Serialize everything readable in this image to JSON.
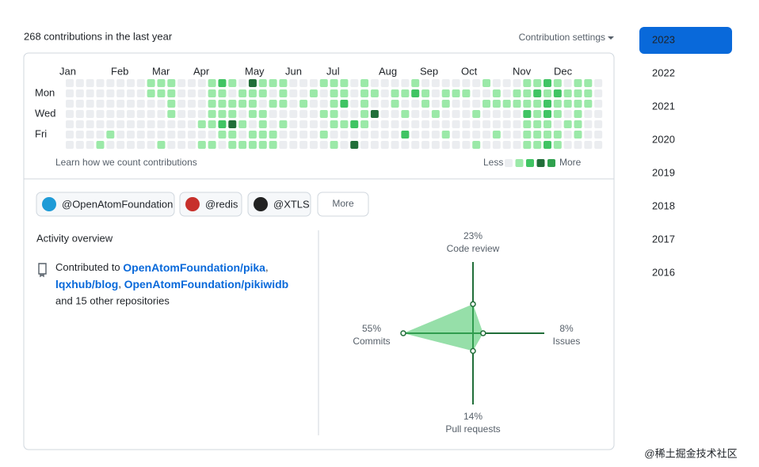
{
  "header": {
    "title": "268 contributions in the last year",
    "settings": "Contribution settings"
  },
  "years": {
    "items": [
      "2023",
      "2022",
      "2021",
      "2020",
      "2019",
      "2018",
      "2017",
      "2016"
    ],
    "selected": "2023"
  },
  "contributions": {
    "months": [
      "Jan",
      "Feb",
      "Mar",
      "Apr",
      "May",
      "Jun",
      "Jul",
      "Aug",
      "Sep",
      "Oct",
      "Nov",
      "Dec"
    ],
    "days": [
      "Mon",
      "Wed",
      "Fri"
    ],
    "level_colors": [
      "#ebedf0",
      "#9be9a8",
      "#40c463",
      "#216e39"
    ],
    "levels": [
      [
        0,
        0,
        0,
        0,
        0,
        0,
        0,
        0,
        1,
        1,
        1,
        0,
        0,
        0,
        1,
        2,
        1,
        0,
        3,
        1,
        1,
        1,
        0,
        0,
        0,
        1,
        1,
        1,
        0,
        1,
        0,
        0,
        0,
        0,
        1,
        0,
        0,
        0,
        0,
        0,
        0,
        1,
        0,
        0,
        0,
        1,
        1,
        2,
        1,
        0,
        1,
        1,
        0
      ],
      [
        0,
        0,
        0,
        0,
        0,
        0,
        0,
        0,
        1,
        1,
        1,
        0,
        0,
        0,
        1,
        1,
        0,
        1,
        1,
        1,
        0,
        1,
        0,
        0,
        1,
        0,
        1,
        1,
        0,
        1,
        1,
        0,
        1,
        1,
        2,
        1,
        0,
        1,
        1,
        1,
        0,
        0,
        1,
        0,
        1,
        1,
        2,
        1,
        2,
        1,
        1,
        1,
        0
      ],
      [
        0,
        0,
        0,
        0,
        0,
        0,
        0,
        0,
        0,
        0,
        1,
        0,
        0,
        0,
        1,
        1,
        1,
        1,
        1,
        0,
        1,
        1,
        0,
        1,
        0,
        0,
        1,
        2,
        0,
        1,
        0,
        0,
        1,
        0,
        0,
        1,
        0,
        1,
        0,
        0,
        0,
        1,
        1,
        1,
        1,
        1,
        1,
        2,
        1,
        1,
        1,
        1,
        0
      ],
      [
        0,
        0,
        0,
        0,
        0,
        0,
        0,
        0,
        0,
        0,
        1,
        0,
        0,
        0,
        1,
        1,
        1,
        0,
        1,
        1,
        0,
        0,
        0,
        0,
        0,
        1,
        1,
        0,
        0,
        1,
        3,
        0,
        0,
        1,
        0,
        0,
        1,
        0,
        0,
        0,
        1,
        0,
        0,
        0,
        0,
        2,
        1,
        2,
        1,
        0,
        1,
        0,
        0
      ],
      [
        0,
        0,
        0,
        0,
        0,
        0,
        0,
        0,
        0,
        0,
        0,
        0,
        0,
        1,
        1,
        2,
        3,
        1,
        0,
        1,
        0,
        1,
        0,
        0,
        0,
        0,
        1,
        1,
        2,
        1,
        0,
        0,
        0,
        0,
        0,
        0,
        0,
        0,
        0,
        0,
        0,
        0,
        0,
        0,
        0,
        1,
        1,
        1,
        0,
        1,
        1,
        0,
        0
      ],
      [
        0,
        0,
        0,
        0,
        1,
        0,
        0,
        0,
        0,
        0,
        0,
        0,
        0,
        0,
        0,
        1,
        1,
        0,
        1,
        1,
        1,
        0,
        0,
        0,
        0,
        1,
        0,
        0,
        0,
        0,
        0,
        0,
        0,
        2,
        0,
        0,
        0,
        1,
        0,
        0,
        0,
        0,
        1,
        0,
        0,
        1,
        1,
        1,
        1,
        0,
        1,
        0,
        0
      ],
      [
        0,
        0,
        0,
        1,
        0,
        0,
        0,
        0,
        0,
        1,
        0,
        0,
        0,
        1,
        1,
        0,
        1,
        1,
        1,
        1,
        1,
        0,
        0,
        0,
        0,
        0,
        1,
        0,
        3,
        0,
        0,
        0,
        0,
        0,
        0,
        0,
        0,
        0,
        0,
        0,
        1,
        0,
        0,
        0,
        0,
        1,
        1,
        2,
        1,
        0,
        0,
        0,
        0
      ]
    ],
    "learn": "Learn how we count contributions",
    "less": "Less",
    "more": "More"
  },
  "organizations": {
    "items": [
      "@OpenAtomFoundation",
      "@redis",
      "@XTLS"
    ],
    "more": "More"
  },
  "activity": {
    "title": "Activity overview",
    "prefix": "Contributed to",
    "repos": [
      "OpenAtomFoundation/pika",
      "lqxhub/blog",
      "OpenAtomFoundation/pikiwidb"
    ],
    "separator": ",",
    "suffix": "and 15 other repositories",
    "radar": [
      {
        "name": "Code review",
        "value": 23,
        "label": "23%"
      },
      {
        "name": "Issues",
        "value": 8,
        "label": "8%"
      },
      {
        "name": "Pull requests",
        "value": 14,
        "label": "14%"
      },
      {
        "name": "Commits",
        "value": 55,
        "label": "55%"
      }
    ]
  },
  "watermark": "@稀土掘金技术社区"
}
